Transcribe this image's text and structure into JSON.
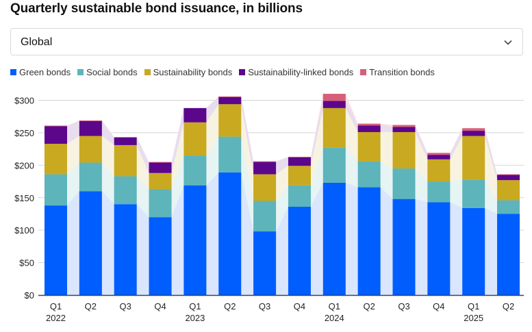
{
  "title": "Quarterly sustainable bond issuance, in billions",
  "filter": {
    "selected": "Global",
    "icon": "chevron-down-icon"
  },
  "colors": {
    "Green bonds": "#005eff",
    "Social bonds": "#5db4bb",
    "Sustainability bonds": "#c8a920",
    "Sustainability-linked bonds": "#5c068c",
    "Transition bonds": "#d6607a"
  },
  "band_colors": {
    "Green bonds": "#dae6fd",
    "Social bonds": "#e6f4f4",
    "Sustainability bonds": "#f8f3e0",
    "Sustainability-linked bonds": "#e8dcef",
    "Transition bonds": "#f7dfe4"
  },
  "chart_data": {
    "type": "bar",
    "stacked": true,
    "title": "Quarterly sustainable bond issuance, in billions",
    "xlabel": "",
    "ylabel": "",
    "ylim": [
      0,
      300
    ],
    "yticks": [
      0,
      50,
      100,
      150,
      200,
      250,
      300
    ],
    "ytick_labels": [
      "$0",
      "$50",
      "$100",
      "$150",
      "$200",
      "$250",
      "$300"
    ],
    "grid": true,
    "legend": "top-left",
    "categories": [
      "Q1 2022",
      "Q2 2022",
      "Q3 2022",
      "Q4 2022",
      "Q1 2023",
      "Q2 2023",
      "Q3 2023",
      "Q4 2023",
      "Q1 2024",
      "Q2 2024",
      "Q3 2024",
      "Q4 2024",
      "Q1 2025",
      "Q2 2025"
    ],
    "xtick_labels": [
      {
        "q": "Q1",
        "year": "2022"
      },
      {
        "q": "Q2",
        "year": ""
      },
      {
        "q": "Q3",
        "year": ""
      },
      {
        "q": "Q4",
        "year": ""
      },
      {
        "q": "Q1",
        "year": "2023"
      },
      {
        "q": "Q2",
        "year": ""
      },
      {
        "q": "Q3",
        "year": ""
      },
      {
        "q": "Q4",
        "year": ""
      },
      {
        "q": "Q1",
        "year": "2024"
      },
      {
        "q": "Q2",
        "year": ""
      },
      {
        "q": "Q3",
        "year": ""
      },
      {
        "q": "Q4",
        "year": ""
      },
      {
        "q": "Q1",
        "year": "2025"
      },
      {
        "q": "Q2",
        "year": ""
      }
    ],
    "series": [
      {
        "name": "Green bonds",
        "values": [
          138,
          160,
          140,
          120,
          169,
          189,
          98,
          136,
          173,
          166,
          148,
          143,
          134,
          125
        ]
      },
      {
        "name": "Social bonds",
        "values": [
          48,
          44,
          43,
          43,
          46,
          55,
          47,
          33,
          54,
          40,
          47,
          32,
          44,
          21
        ]
      },
      {
        "name": "Sustainability bonds",
        "values": [
          47,
          41,
          48,
          25,
          51,
          50,
          41,
          30,
          61,
          45,
          56,
          34,
          67,
          31
        ]
      },
      {
        "name": "Sustainability-linked bonds",
        "values": [
          27,
          23,
          12,
          16,
          22,
          11,
          19,
          13,
          11,
          10,
          8,
          7,
          8,
          8
        ]
      },
      {
        "name": "Transition bonds",
        "values": [
          1,
          1,
          0,
          1,
          0,
          1,
          1,
          1,
          11,
          3,
          3,
          3,
          4,
          1
        ]
      }
    ]
  }
}
